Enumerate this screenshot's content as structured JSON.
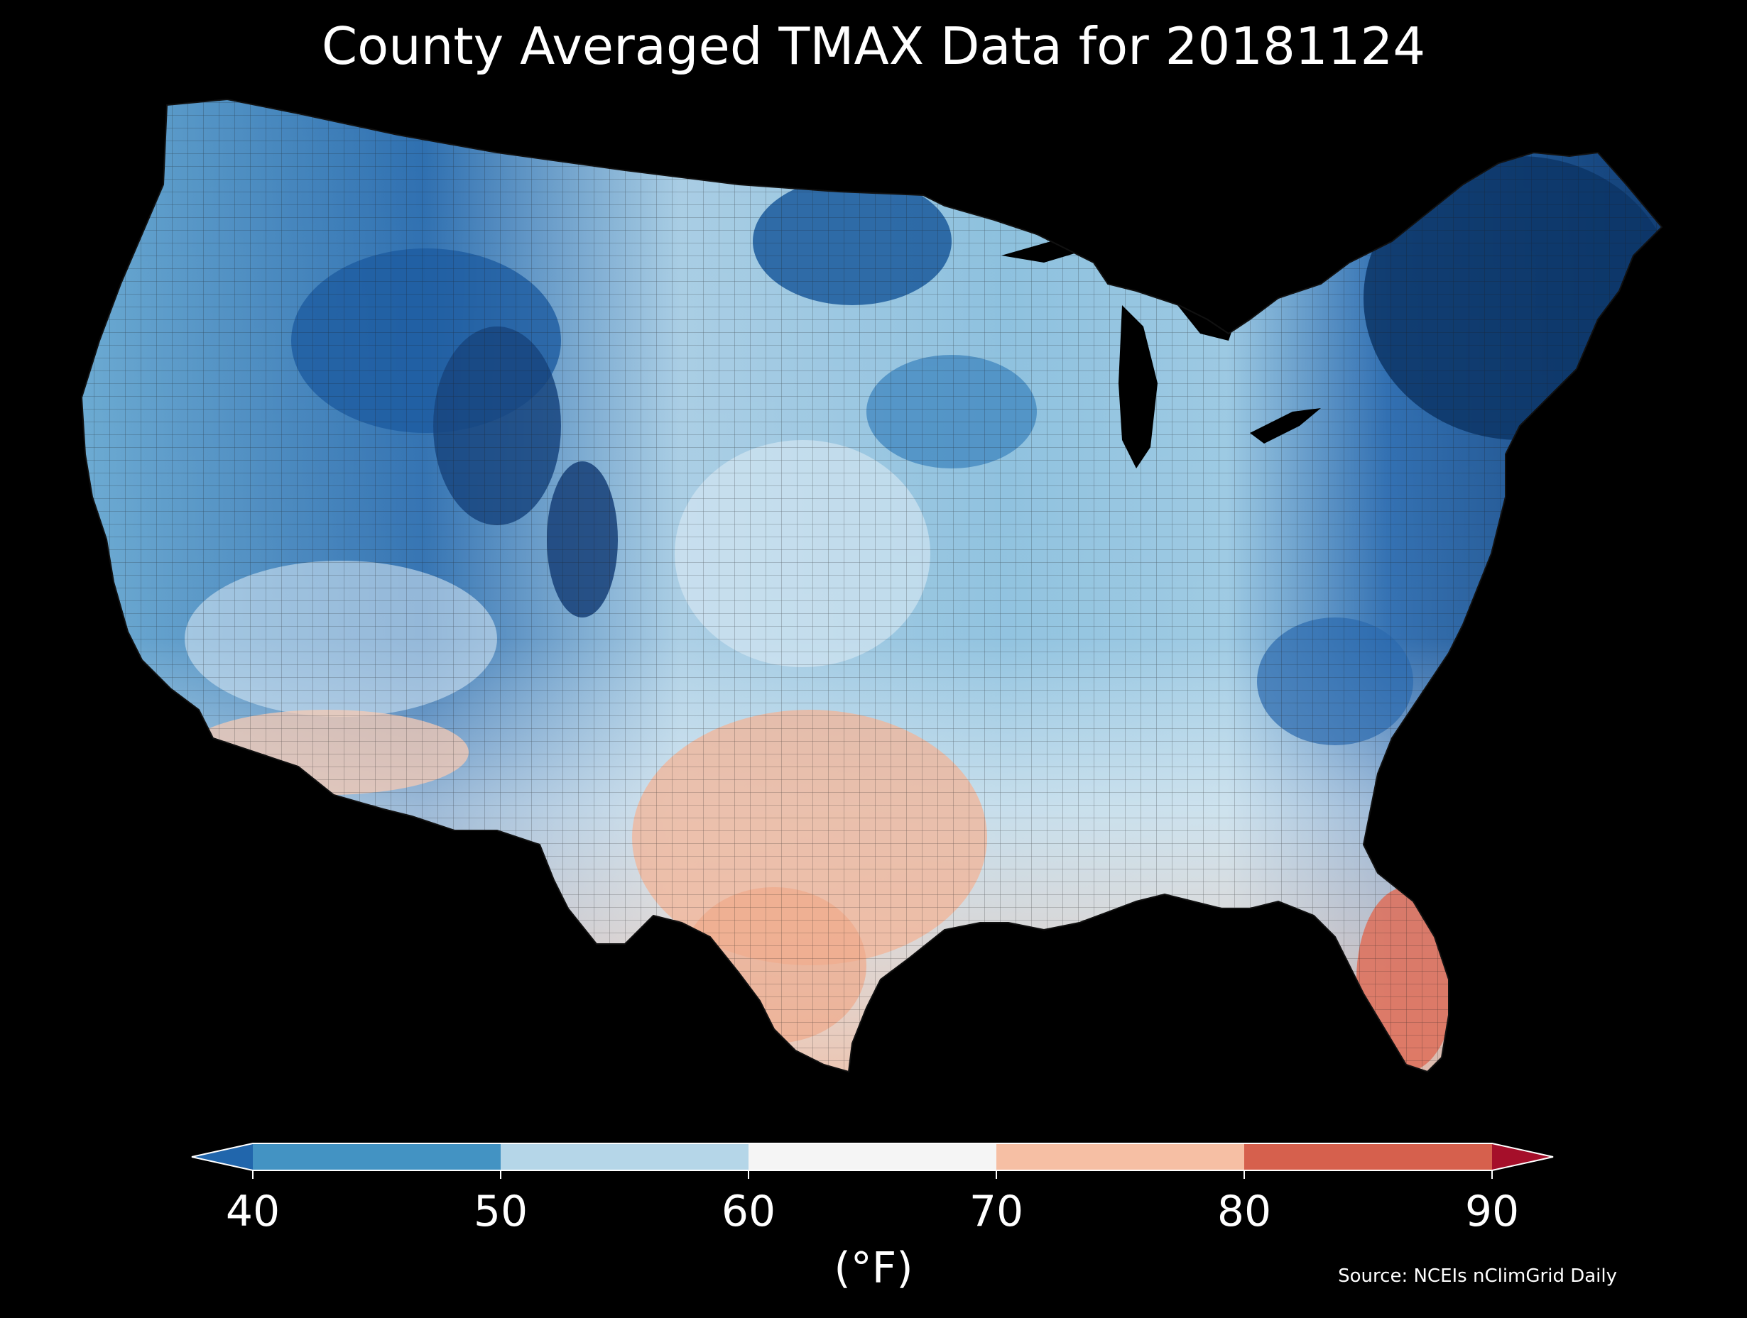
{
  "title": "County Averaged TMAX Data for 20181124",
  "colorbar": {
    "units_label": "(°F)",
    "ticks": [
      "40",
      "50",
      "60",
      "70",
      "80",
      "90"
    ],
    "bins": [
      {
        "range": "<40",
        "color": "#2166ac"
      },
      {
        "range": "40-50",
        "color": "#4393c3"
      },
      {
        "range": "50-60",
        "color": "#b5d6e8"
      },
      {
        "range": "60-70",
        "color": "#f5f5f5"
      },
      {
        "range": "70-80",
        "color": "#f6bfa4"
      },
      {
        "range": "80-90",
        "color": "#d6604d"
      },
      {
        "range": ">90",
        "color": "#a50f2a"
      }
    ]
  },
  "source": "Source: NCEIs nClimGrid Daily",
  "map": {
    "region": "Contiguous United States",
    "variable": "TMAX",
    "summary": {
      "coldest_regions": [
        "New England",
        "Northern Rockies",
        "Northern Minnesota"
      ],
      "warmest_regions": [
        "South Florida",
        "South Texas",
        "Southern Arizona"
      ]
    }
  }
}
